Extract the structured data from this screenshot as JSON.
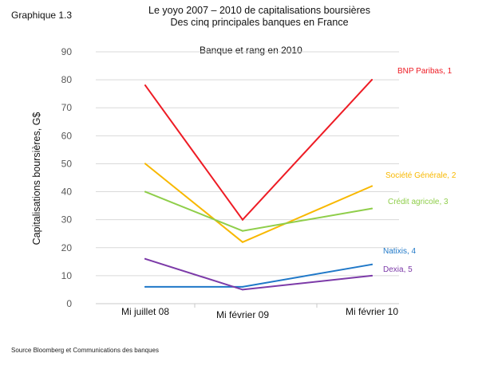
{
  "figure_label": "Graphique  1.3",
  "source_note": "Source Bloomberg et Communications des banques",
  "chart_data": {
    "type": "line",
    "title": [
      "Le yoyo 2007 – 2010 de capitalisations boursières",
      "Des cinq principales banques  en France"
    ],
    "legend_title": "Banque  et rang en 2010",
    "ylabel": "Capitalisations boursières, G$",
    "xlabel": "",
    "categories": [
      "Mi juillet 08",
      "Mi février 09",
      "Mi février 10"
    ],
    "yticks": [
      "0",
      "10",
      "20",
      "30",
      "40",
      "50",
      "60",
      "70",
      "80",
      "90"
    ],
    "ylim": [
      0,
      90
    ],
    "grid": true,
    "series": [
      {
        "name": "BNP Paribas, 1",
        "color": "#ee1c25",
        "values": [
          78,
          30,
          80
        ]
      },
      {
        "name": "Société Générale, 2",
        "color": "#f8b800",
        "values": [
          50,
          22,
          42
        ]
      },
      {
        "name": "Crédit agricole, 3",
        "color": "#8fce4a",
        "values": [
          40,
          26,
          34
        ]
      },
      {
        "name": "Natixis, 4",
        "color": "#1f78c8",
        "values": [
          6,
          6,
          14
        ]
      },
      {
        "name": "Dexia, 5",
        "color": "#7c3aa8",
        "values": [
          16,
          5,
          10
        ]
      }
    ]
  }
}
